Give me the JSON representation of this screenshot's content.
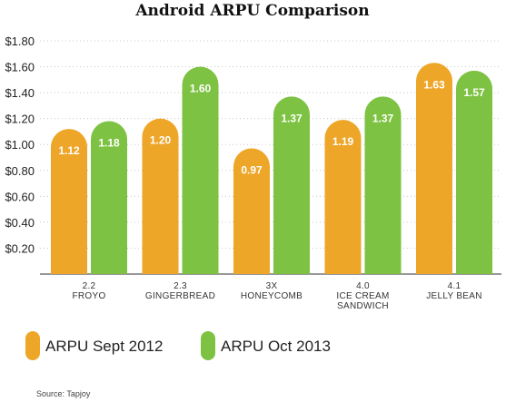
{
  "chart_data": {
    "type": "bar",
    "title": "Android ARPU Comparison",
    "categories": [
      [
        "2.2",
        "FROYO"
      ],
      [
        "2.3",
        "GINGERBREAD"
      ],
      [
        "3X",
        "HONEYCOMB"
      ],
      [
        "4.0",
        "ICE CREAM",
        "SANDWICH"
      ],
      [
        "4.1",
        "JELLY BEAN"
      ]
    ],
    "series": [
      {
        "name": "ARPU Sept 2012",
        "color": "#EDA628",
        "values": [
          1.12,
          1.2,
          0.97,
          1.19,
          1.63
        ],
        "labels": [
          "1.12",
          "1.20",
          "0.97",
          "1.19",
          "1.63"
        ]
      },
      {
        "name": "ARPU Oct 2013",
        "color": "#7DC242",
        "values": [
          1.18,
          1.6,
          1.37,
          1.37,
          1.57
        ],
        "labels": [
          "1.18",
          "1.60",
          "1.37",
          "1.37",
          "1.57"
        ]
      }
    ],
    "yticks": [
      "$0.20",
      "$0.40",
      "$0.60",
      "$0.80",
      "$1.00",
      "$1.20",
      "$1.40",
      "$1.60",
      "$1.80"
    ],
    "ytick_values": [
      0.2,
      0.4,
      0.6,
      0.8,
      1.0,
      1.2,
      1.4,
      1.6,
      1.8
    ],
    "ylim": [
      0,
      1.8
    ],
    "grid": true,
    "legend_position": "bottom-left"
  },
  "source": "Source: Tapjoy"
}
